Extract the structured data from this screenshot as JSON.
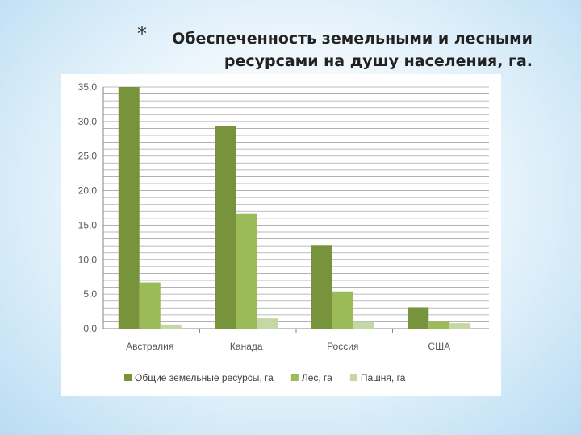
{
  "slide": {
    "bullet": "*",
    "title_line1": "Обеспеченность земельными и лесными",
    "title_line2": "ресурсами на душу населения, га."
  },
  "chart_data": {
    "type": "bar",
    "categories": [
      "Австралия",
      "Канада",
      "Россия",
      "США"
    ],
    "series": [
      {
        "name": "Общие земельные ресурсы, га",
        "color": "#77933c",
        "values": [
          35.0,
          29.3,
          12.1,
          3.1
        ]
      },
      {
        "name": "Лес, га",
        "color": "#9bbb59",
        "values": [
          6.7,
          16.6,
          5.4,
          1.0
        ]
      },
      {
        "name": "Пашня, га",
        "color": "#c4d7a4",
        "values": [
          0.6,
          1.5,
          1.0,
          0.8
        ]
      }
    ],
    "ylim": [
      0,
      35
    ],
    "y_ticks": [
      "0,0",
      "5,0",
      "10,0",
      "15,0",
      "20,0",
      "25,0",
      "30,0",
      "35,0"
    ],
    "minor_grid_step": 1,
    "grid": true,
    "legend_position": "bottom"
  }
}
